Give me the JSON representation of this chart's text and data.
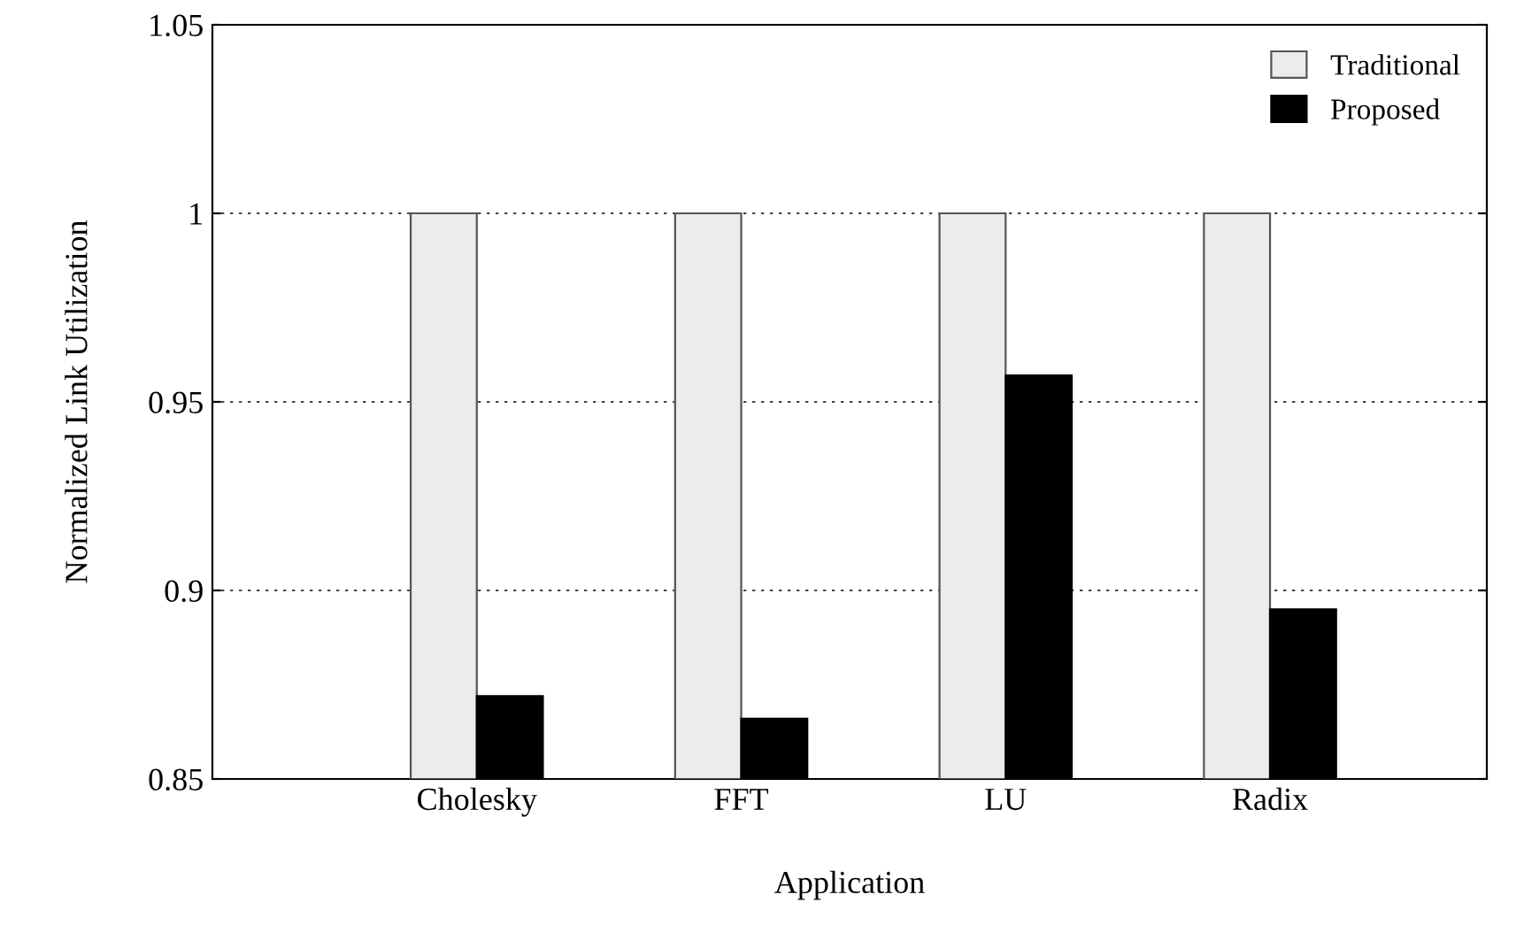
{
  "chart_data": {
    "type": "bar",
    "xlabel": "Application",
    "ylabel": "Normalized Link Utilization",
    "categories": [
      "Cholesky",
      "FFT",
      "LU",
      "Radix"
    ],
    "series": [
      {
        "name": "Traditional",
        "color": "#ececec",
        "values": [
          1,
          1,
          1,
          1
        ]
      },
      {
        "name": "Proposed",
        "color": "#000000",
        "values": [
          0.872,
          0.866,
          0.957,
          0.895
        ]
      }
    ],
    "ylim": [
      0.85,
      1.05
    ],
    "yticks": [
      0.85,
      0.9,
      0.95,
      1,
      1.05
    ],
    "grid": "y",
    "legend": "top right"
  }
}
